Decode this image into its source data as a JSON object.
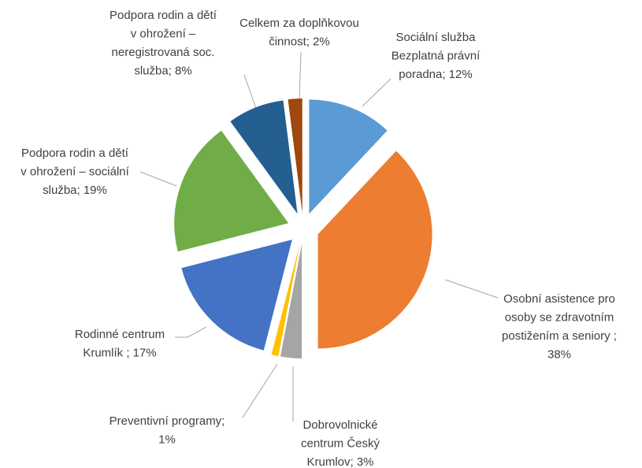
{
  "chart_data": {
    "type": "pie",
    "categories": [
      "Sociální služba Bezplatná právní poradna",
      "Osobní asistence pro osoby se zdravotním postižením a seniory",
      "Dobrovolnické centrum Český Krumlov",
      "Preventivní programy",
      "Rodinné centrum Krumlík",
      "Podpora rodin a dětí v ohrožení – sociální služba",
      "Podpora rodin a dětí v ohrožení – neregistrovaná soc. služba",
      "Celkem za doplňkovou činnost"
    ],
    "values": [
      12,
      38,
      3,
      1,
      17,
      19,
      8,
      2
    ],
    "value_labels": [
      [
        "Sociální služba",
        "Bezplatná právní",
        "poradna; 12%"
      ],
      [
        "Osobní asistence pro",
        "osoby se zdravotním",
        "postižením a seniory ;",
        "38%"
      ],
      [
        "Dobrovolnické",
        "centrum Český",
        "Krumlov; 3%"
      ],
      [
        "Preventivní programy;",
        "1%"
      ],
      [
        "Rodinné centrum",
        "Krumlík ; 17%"
      ],
      [
        "Podpora rodin a dětí",
        "v ohrožení – sociální",
        "služba; 19%"
      ],
      [
        "Podpora rodin a dětí",
        "v ohrožení –",
        "neregistrovaná soc.",
        "služba; 8%"
      ],
      [
        "Celkem za doplňkovou",
        "činnost; 2%"
      ]
    ],
    "colors": [
      "#5b9bd5",
      "#ed7d31",
      "#a5a5a5",
      "#ffc000",
      "#4472c4",
      "#70ad47",
      "#255e91",
      "#9e480e"
    ]
  }
}
